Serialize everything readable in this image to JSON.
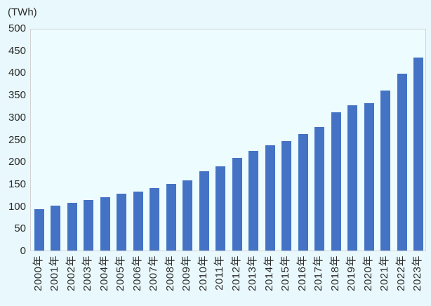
{
  "chart_data": {
    "type": "bar",
    "title": "(TWh)",
    "xlabel": "",
    "ylabel": "(TWh)",
    "categories": [
      "2000年",
      "2001年",
      "2002年",
      "2003年",
      "2004年",
      "2005年",
      "2006年",
      "2007年",
      "2008年",
      "2009年",
      "2010年",
      "2011年",
      "2012年",
      "2013年",
      "2014年",
      "2015年",
      "2016年",
      "2017年",
      "2018年",
      "2019年",
      "2020年",
      "2021年",
      "2022年",
      "2023年"
    ],
    "values": [
      93,
      101,
      108,
      114,
      120,
      127,
      133,
      141,
      150,
      157,
      178,
      190,
      208,
      224,
      237,
      246,
      262,
      277,
      310,
      327,
      332,
      360,
      398,
      434
    ],
    "ylim": [
      0,
      500
    ],
    "yticks": [
      0,
      50,
      100,
      150,
      200,
      250,
      300,
      350,
      400,
      450,
      500
    ],
    "grid": false,
    "legend": "none",
    "colors": {
      "bar": "#4472C4",
      "page_bg": "#E9F8FC",
      "plot_bg": "#EDFCFF",
      "plot_border": "#D2D2D2",
      "text": "#2B2B2B"
    }
  }
}
